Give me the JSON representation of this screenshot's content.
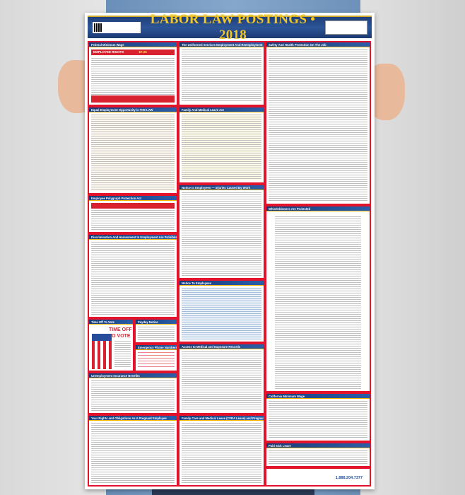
{
  "poster": {
    "title": "LABOR LAW POSTINGS • 2018",
    "sections": {
      "federal_minimum_wage": "Federal Minimum Wage",
      "employee_rights": "EMPLOYEE RIGHTS",
      "wage_amount": "$7.25",
      "eeo": "Equal Employment Opportunity is THE LAW",
      "polygraph": "Employee Polygraph Protection Act",
      "discrimination": "Discrimination And Harassment In Employment Are Prohibited By Law",
      "time_off_vote": "Time Off To Vote",
      "time_off_vote_graphic": "TIME OFF TO VOTE",
      "payday": "Payday Notice",
      "emergency": "Emergency Phone Numbers",
      "unemployment": "Unemployment Insurance Benefits",
      "pregnant": "Your Rights and Obligations As A Pregnant Employee",
      "userra": "The Uniformed Services Employment And Reemployment Rights Act",
      "fmla": "Family And Medical Leave Act",
      "injuries": "Notice to Employees — Injuries Caused By Work",
      "notice": "Notice To Employees",
      "medical_records": "Access to Medical and Exposure Records",
      "cfra": "Family Care and Medical Leave (CFRA Leave) and Pregnancy Disability Leave",
      "safety": "Safety And Health Protection On The Job",
      "whistleblowers": "Whistleblowers Are Protected",
      "ca_min_wage": "California Minimum Wage",
      "paid_sick": "Paid Sick Leave"
    },
    "footer_phone": "1.888.204.7377"
  },
  "colors": {
    "header": "#1f3f7a",
    "title": "#f2c624",
    "border": "#e3132b"
  }
}
